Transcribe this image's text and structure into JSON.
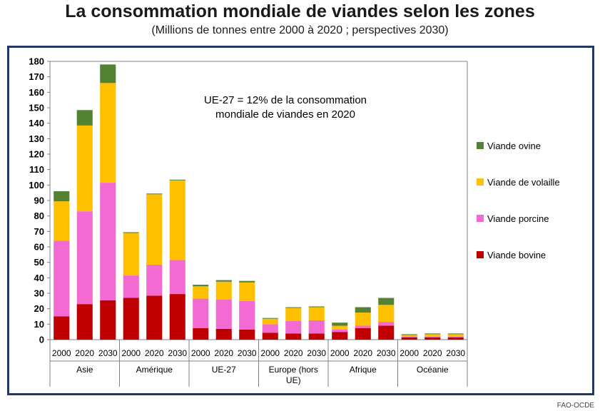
{
  "header": {
    "title": "La consommation mondiale de viandes selon les zones",
    "subtitle": "(Millions de tonnes entre 2000 à 2020 ; perspectives 2030)"
  },
  "source": "FAO-OCDE",
  "chart_data": {
    "type": "bar",
    "stacked": true,
    "title": "La consommation mondiale de viandes selon les zones",
    "subtitle": "(Millions de tonnes entre 2000 à 2020 ; perspectives 2030)",
    "annotation": "UE-27 = 12% de la consommation mondiale de viandes en 2020",
    "annotation_lines": [
      "UE-27 = 12% de la consommation",
      "mondiale de viandes en 2020"
    ],
    "ylim": [
      0,
      180
    ],
    "yticks": [
      0,
      10,
      20,
      30,
      40,
      50,
      60,
      70,
      80,
      90,
      100,
      110,
      120,
      130,
      140,
      150,
      160,
      170,
      180
    ],
    "grid": false,
    "legend_position": "right",
    "groups": [
      {
        "label": "Asie",
        "label_lines": [
          "Asie"
        ],
        "years": [
          "2000",
          "2020",
          "2030"
        ]
      },
      {
        "label": "Amérique",
        "label_lines": [
          "Amérique"
        ],
        "years": [
          "2000",
          "2020",
          "2030"
        ]
      },
      {
        "label": "UE-27",
        "label_lines": [
          "UE-27"
        ],
        "years": [
          "2000",
          "2020",
          "2030"
        ]
      },
      {
        "label": "Europe (hors UE)",
        "label_lines": [
          "Europe (hors",
          "UE)"
        ],
        "years": [
          "2000",
          "2020",
          "2030"
        ]
      },
      {
        "label": "Afrique",
        "label_lines": [
          "Afrique"
        ],
        "years": [
          "2000",
          "2020",
          "2030"
        ]
      },
      {
        "label": "Océanie",
        "label_lines": [
          "Océanie"
        ],
        "years": [
          "2000",
          "2020",
          "2030"
        ]
      }
    ],
    "series": [
      {
        "name": "Viande bovine",
        "color": "#c00000",
        "values": [
          15,
          23,
          25.5,
          27,
          28.5,
          29.5,
          7.5,
          7,
          6.5,
          4.5,
          4,
          4,
          5,
          7.5,
          9,
          1.5,
          1.5,
          1.5
        ]
      },
      {
        "name": "Viande porcine",
        "color": "#f36ad2",
        "values": [
          49,
          60,
          76,
          14.5,
          20,
          22,
          19,
          19,
          18.5,
          5.5,
          8,
          8.5,
          1.5,
          1.5,
          2.5,
          0.5,
          0.5,
          0.5
        ]
      },
      {
        "name": "Viande de volaille",
        "color": "#ffc000",
        "values": [
          25.5,
          55.5,
          64.5,
          27.5,
          45.5,
          51.5,
          8,
          11.5,
          12,
          3.5,
          8.5,
          8.5,
          2.5,
          8.5,
          11,
          1,
          1.5,
          1.5
        ]
      },
      {
        "name": "Viande ovine",
        "color": "#548235",
        "values": [
          6.5,
          10,
          12,
          0.5,
          0.5,
          0.5,
          1,
          1,
          1,
          0.5,
          0.5,
          0.5,
          2,
          3.5,
          4.5,
          0.5,
          0.5,
          0.5
        ]
      }
    ],
    "legend_order": [
      "Viande ovine",
      "Viande de volaille",
      "Viande porcine",
      "Viande bovine"
    ]
  }
}
